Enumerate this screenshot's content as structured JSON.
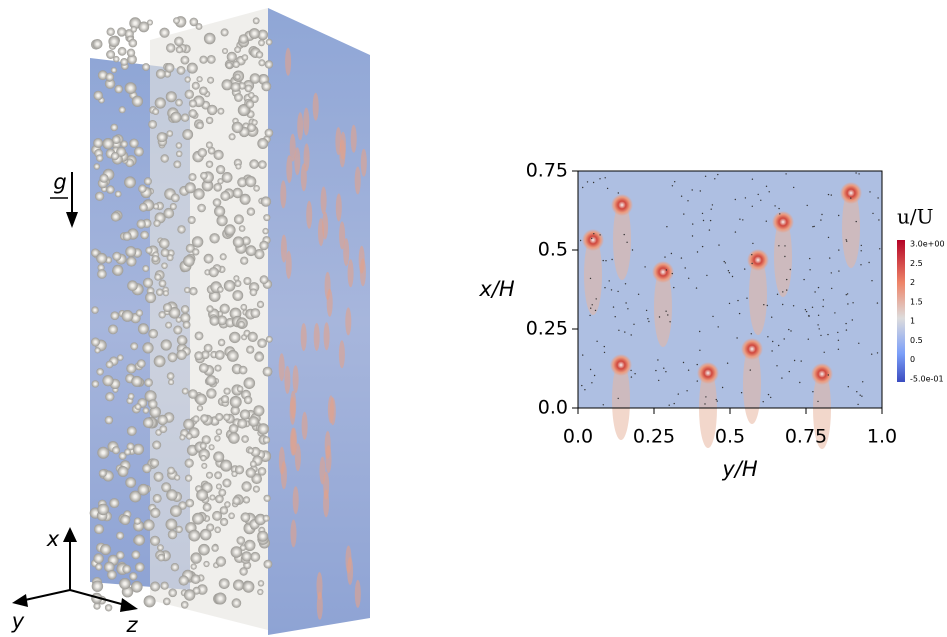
{
  "left_panel": {
    "gravity_label": "g",
    "axis_x": "x",
    "axis_y": "y",
    "axis_z": "z"
  },
  "right_panel": {
    "ylabel": "x/H",
    "xlabel": "y/H",
    "yticks": [
      "0.75",
      "0.5",
      "0.25",
      "0.0"
    ],
    "xticks": [
      "0.0",
      "0.25",
      "0.5",
      "0.75",
      "1.0"
    ],
    "colorbar": {
      "title": "u/U",
      "ticks": [
        "3.0e+00",
        "2.5",
        "2",
        "1.5",
        "1",
        "0.5",
        "0",
        "-5.0e-01"
      ]
    }
  }
}
